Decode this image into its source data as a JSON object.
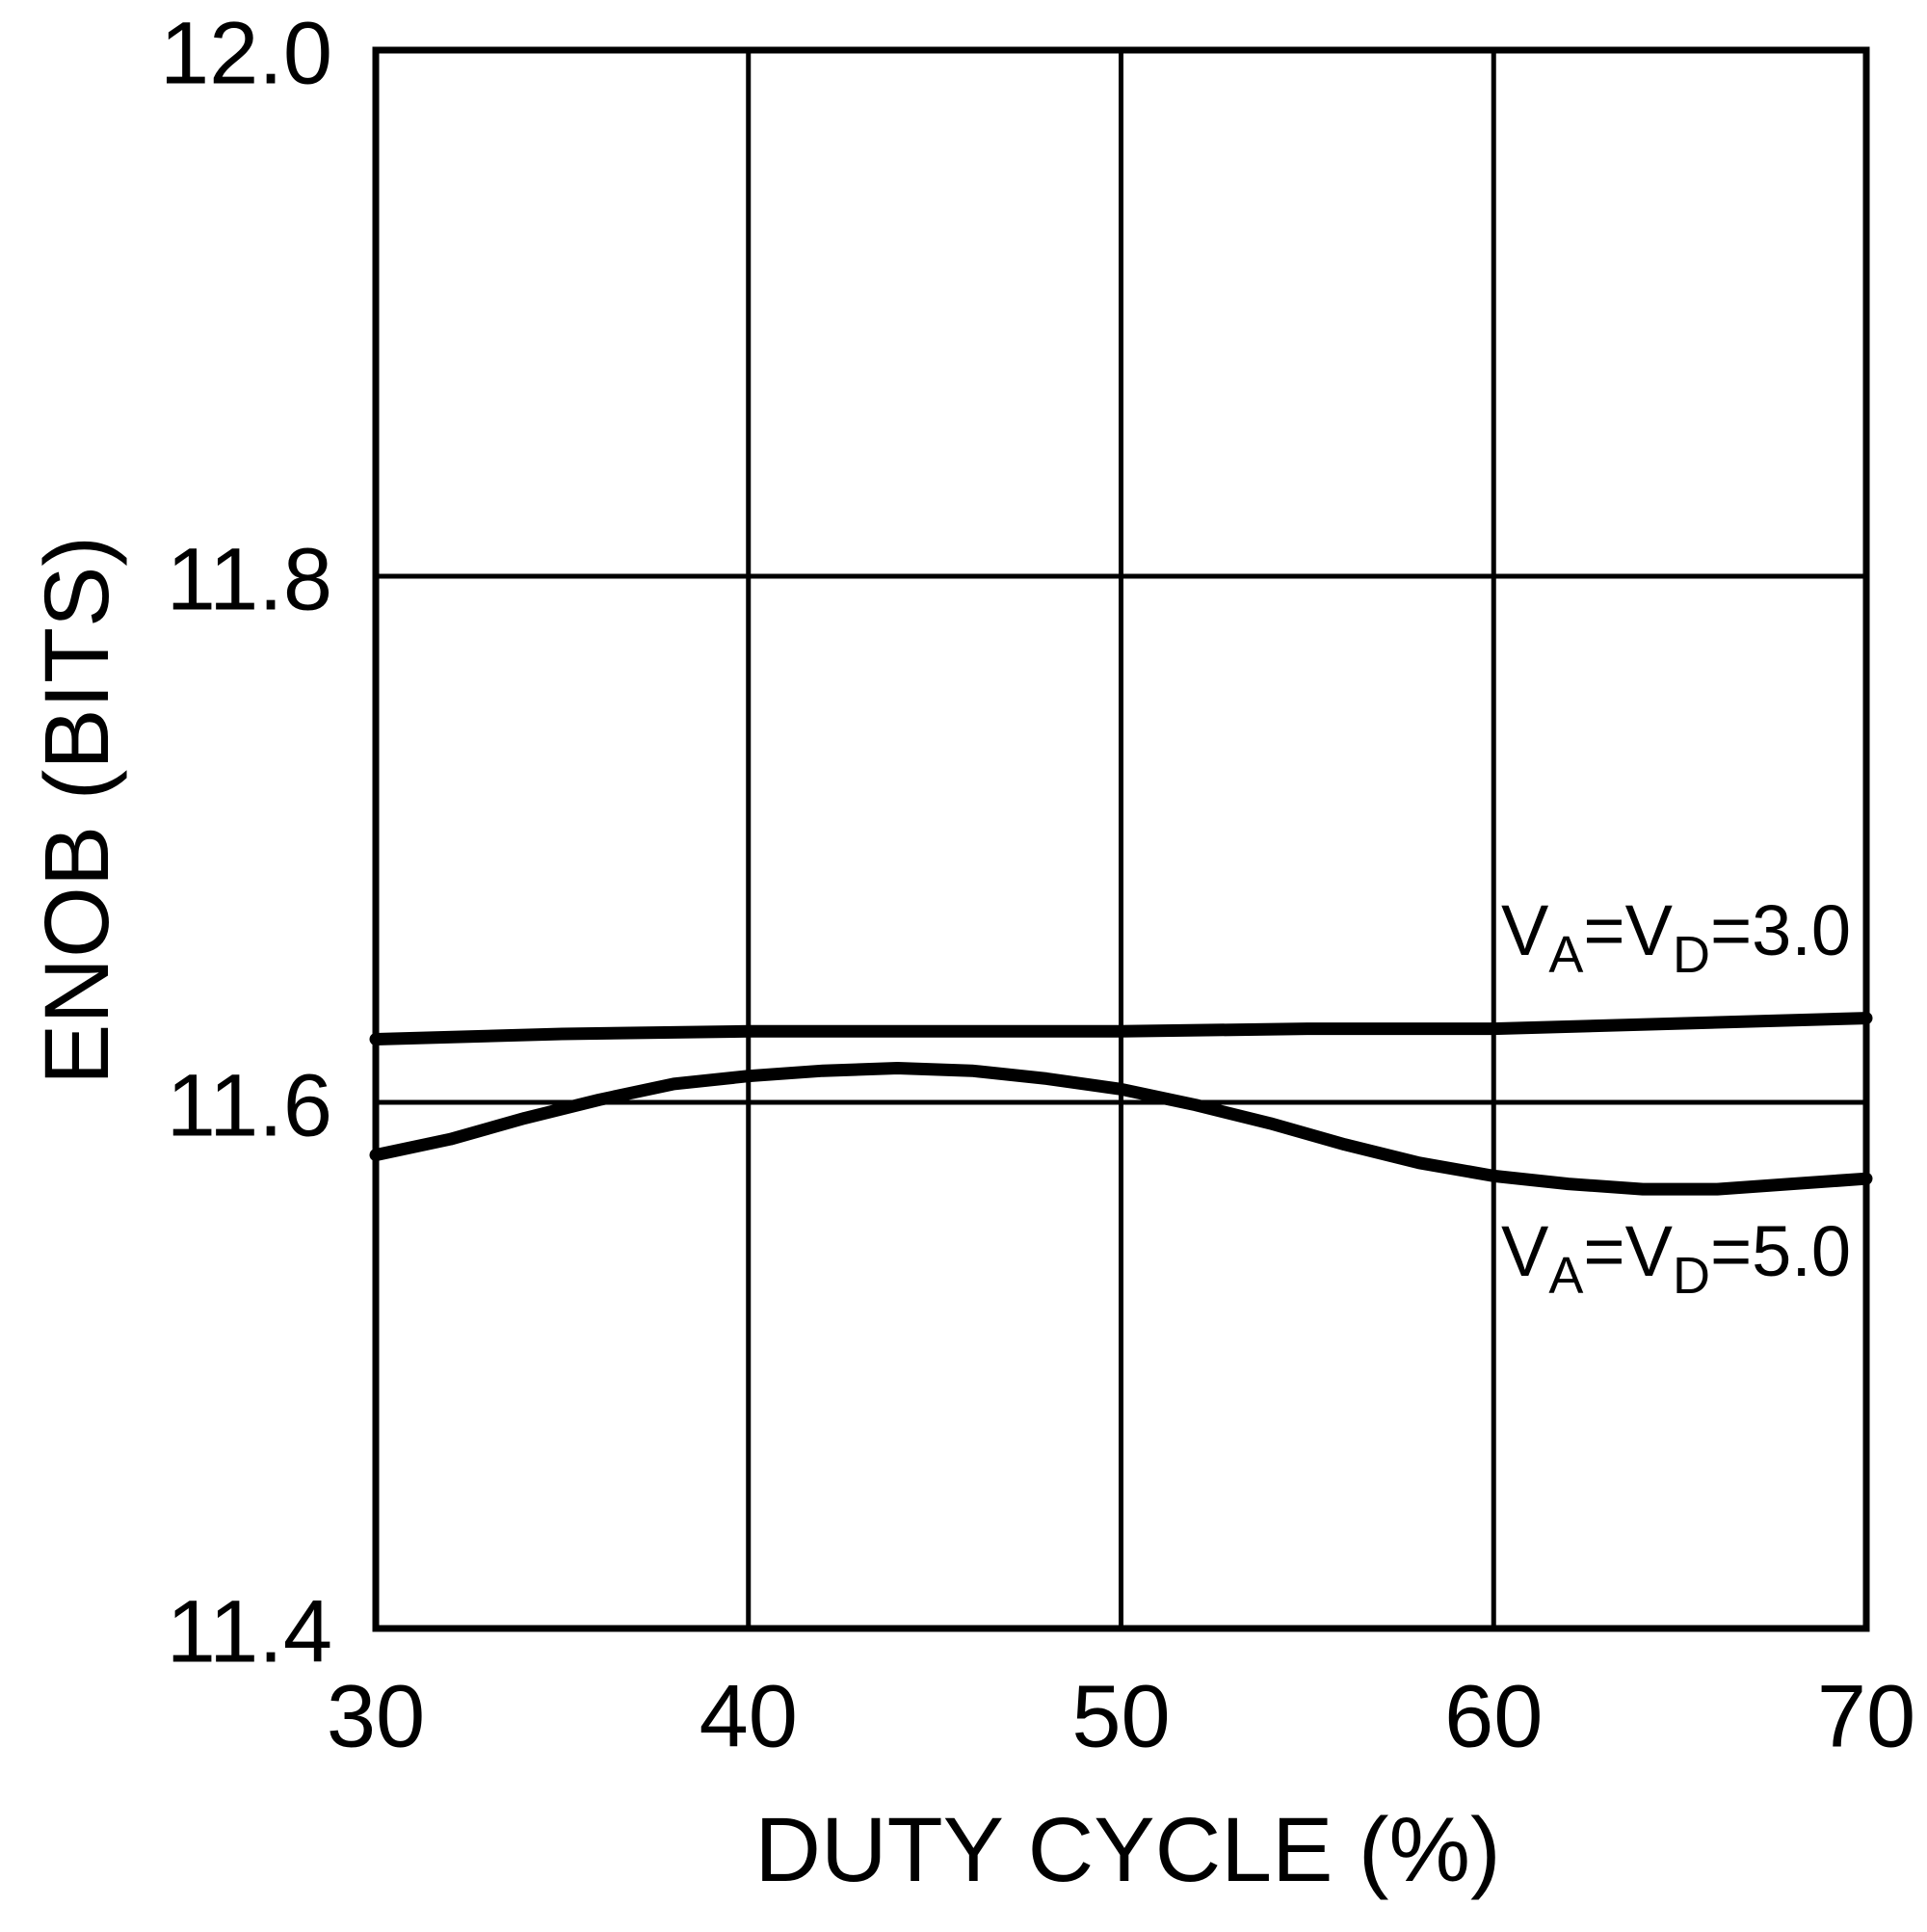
{
  "colors": {
    "foreground": "#000000",
    "background": "#ffffff",
    "series": [
      "#000000",
      "#000000"
    ]
  },
  "chart_data": {
    "type": "line",
    "title": "",
    "xlabel": "DUTY CYCLE (%)",
    "ylabel": "ENOB (BITS)",
    "xlim": [
      30,
      70
    ],
    "ylim": [
      11.4,
      12.0
    ],
    "xticks": [
      30,
      40,
      50,
      60,
      70
    ],
    "yticks": [
      11.4,
      11.6,
      11.8,
      12.0
    ],
    "xtick_labels": [
      "30",
      "40",
      "50",
      "60",
      "70"
    ],
    "ytick_labels": [
      "11.4",
      "11.6",
      "11.8",
      "12.0"
    ],
    "grid": true,
    "legend_position": "inline-right",
    "series": [
      {
        "name": "VA=VD=3.0",
        "label_parts": [
          {
            "text": "V",
            "sub": false
          },
          {
            "text": "A",
            "sub": true
          },
          {
            "text": "=V",
            "sub": false
          },
          {
            "text": "D",
            "sub": true
          },
          {
            "text": "=3.0",
            "sub": false
          }
        ],
        "label_pos": {
          "x": 60.2,
          "y": 11.656
        },
        "points": [
          [
            30,
            11.624
          ],
          [
            35,
            11.626
          ],
          [
            40,
            11.627
          ],
          [
            45,
            11.627
          ],
          [
            50,
            11.627
          ],
          [
            55,
            11.628
          ],
          [
            60,
            11.628
          ],
          [
            65,
            11.63
          ],
          [
            70,
            11.632
          ]
        ]
      },
      {
        "name": "VA=VD=5.0",
        "label_parts": [
          {
            "text": "V",
            "sub": false
          },
          {
            "text": "A",
            "sub": true
          },
          {
            "text": "=V",
            "sub": false
          },
          {
            "text": "D",
            "sub": true
          },
          {
            "text": "=5.0",
            "sub": false
          }
        ],
        "label_pos": {
          "x": 60.2,
          "y": 11.534
        },
        "points": [
          [
            30,
            11.58
          ],
          [
            32,
            11.586
          ],
          [
            34,
            11.594
          ],
          [
            36,
            11.601
          ],
          [
            38,
            11.607
          ],
          [
            40,
            11.61
          ],
          [
            42,
            11.612
          ],
          [
            44,
            11.613
          ],
          [
            46,
            11.612
          ],
          [
            48,
            11.609
          ],
          [
            50,
            11.605
          ],
          [
            52,
            11.599
          ],
          [
            54,
            11.592
          ],
          [
            56,
            11.584
          ],
          [
            58,
            11.577
          ],
          [
            60,
            11.572
          ],
          [
            62,
            11.569
          ],
          [
            64,
            11.567
          ],
          [
            66,
            11.567
          ],
          [
            68,
            11.569
          ],
          [
            70,
            11.571
          ]
        ]
      }
    ]
  }
}
